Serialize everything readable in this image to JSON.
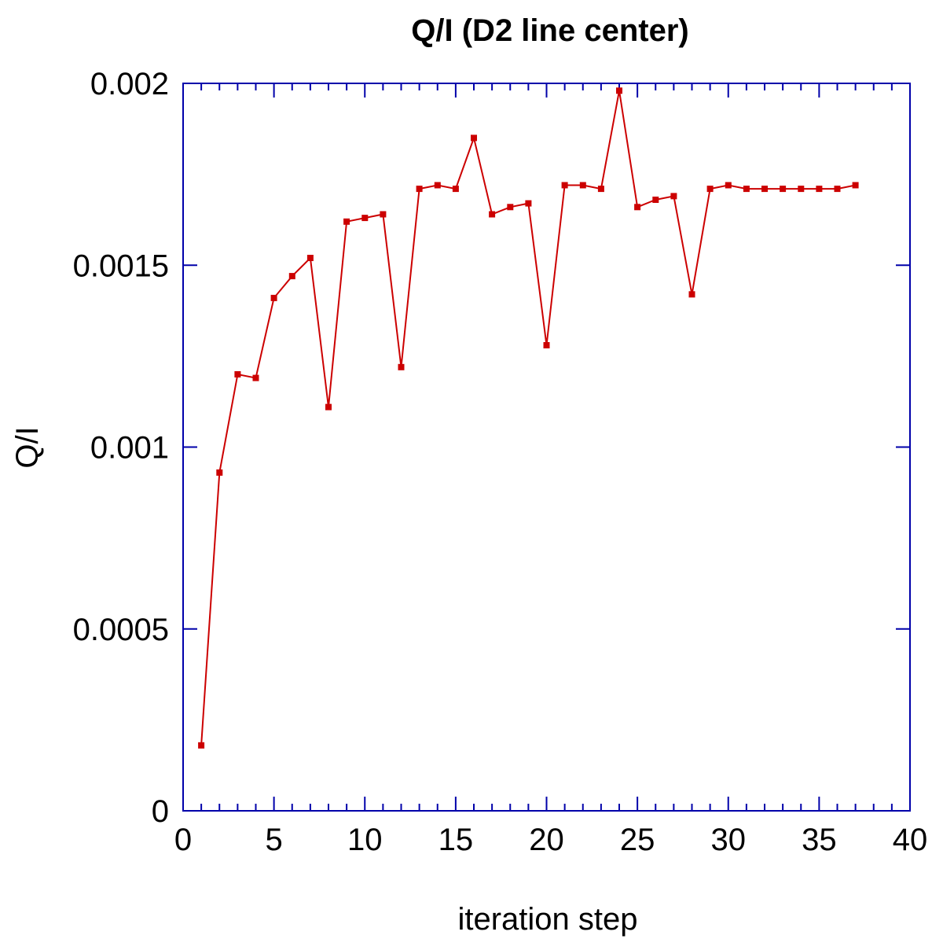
{
  "chart_data": {
    "type": "line",
    "title": "Q/I (D2 line center)",
    "xlabel": "iteration step",
    "ylabel": "Q/I",
    "xlim": [
      0,
      40
    ],
    "ylim": [
      0,
      0.002
    ],
    "x_ticks": [
      0,
      5,
      10,
      15,
      20,
      25,
      30,
      35,
      40
    ],
    "y_ticks": [
      0,
      0.0005,
      0.001,
      0.0015,
      0.002
    ],
    "x_tick_labels": [
      "0",
      "5",
      "10",
      "15",
      "20",
      "25",
      "30",
      "35",
      "40"
    ],
    "y_tick_labels": [
      "0",
      "0.0005",
      "0.001",
      "0.0015",
      "0.002"
    ],
    "grid": false,
    "legend": "none",
    "colors": {
      "series": "#cc0000",
      "frame": "#0000aa"
    },
    "series": [
      {
        "x": [
          1,
          2,
          3,
          4,
          5,
          6,
          7,
          8,
          9,
          10,
          11,
          12,
          13,
          14,
          15,
          16,
          17,
          18,
          19,
          20,
          21,
          22,
          23,
          24,
          25,
          26,
          27,
          28,
          29,
          30,
          31,
          32,
          33,
          34,
          35,
          36,
          37
        ],
        "values": [
          0.00018,
          0.00093,
          0.0012,
          0.00119,
          0.00141,
          0.00147,
          0.00152,
          0.00111,
          0.00162,
          0.00163,
          0.00164,
          0.00122,
          0.00171,
          0.00172,
          0.00171,
          0.00185,
          0.00164,
          0.00166,
          0.00167,
          0.00128,
          0.00172,
          0.00172,
          0.00171,
          0.00198,
          0.00166,
          0.00168,
          0.00169,
          0.00142,
          0.00171,
          0.00172,
          0.00171,
          0.00171,
          0.00171,
          0.00171,
          0.00171,
          0.00171,
          0.00172
        ]
      }
    ]
  }
}
